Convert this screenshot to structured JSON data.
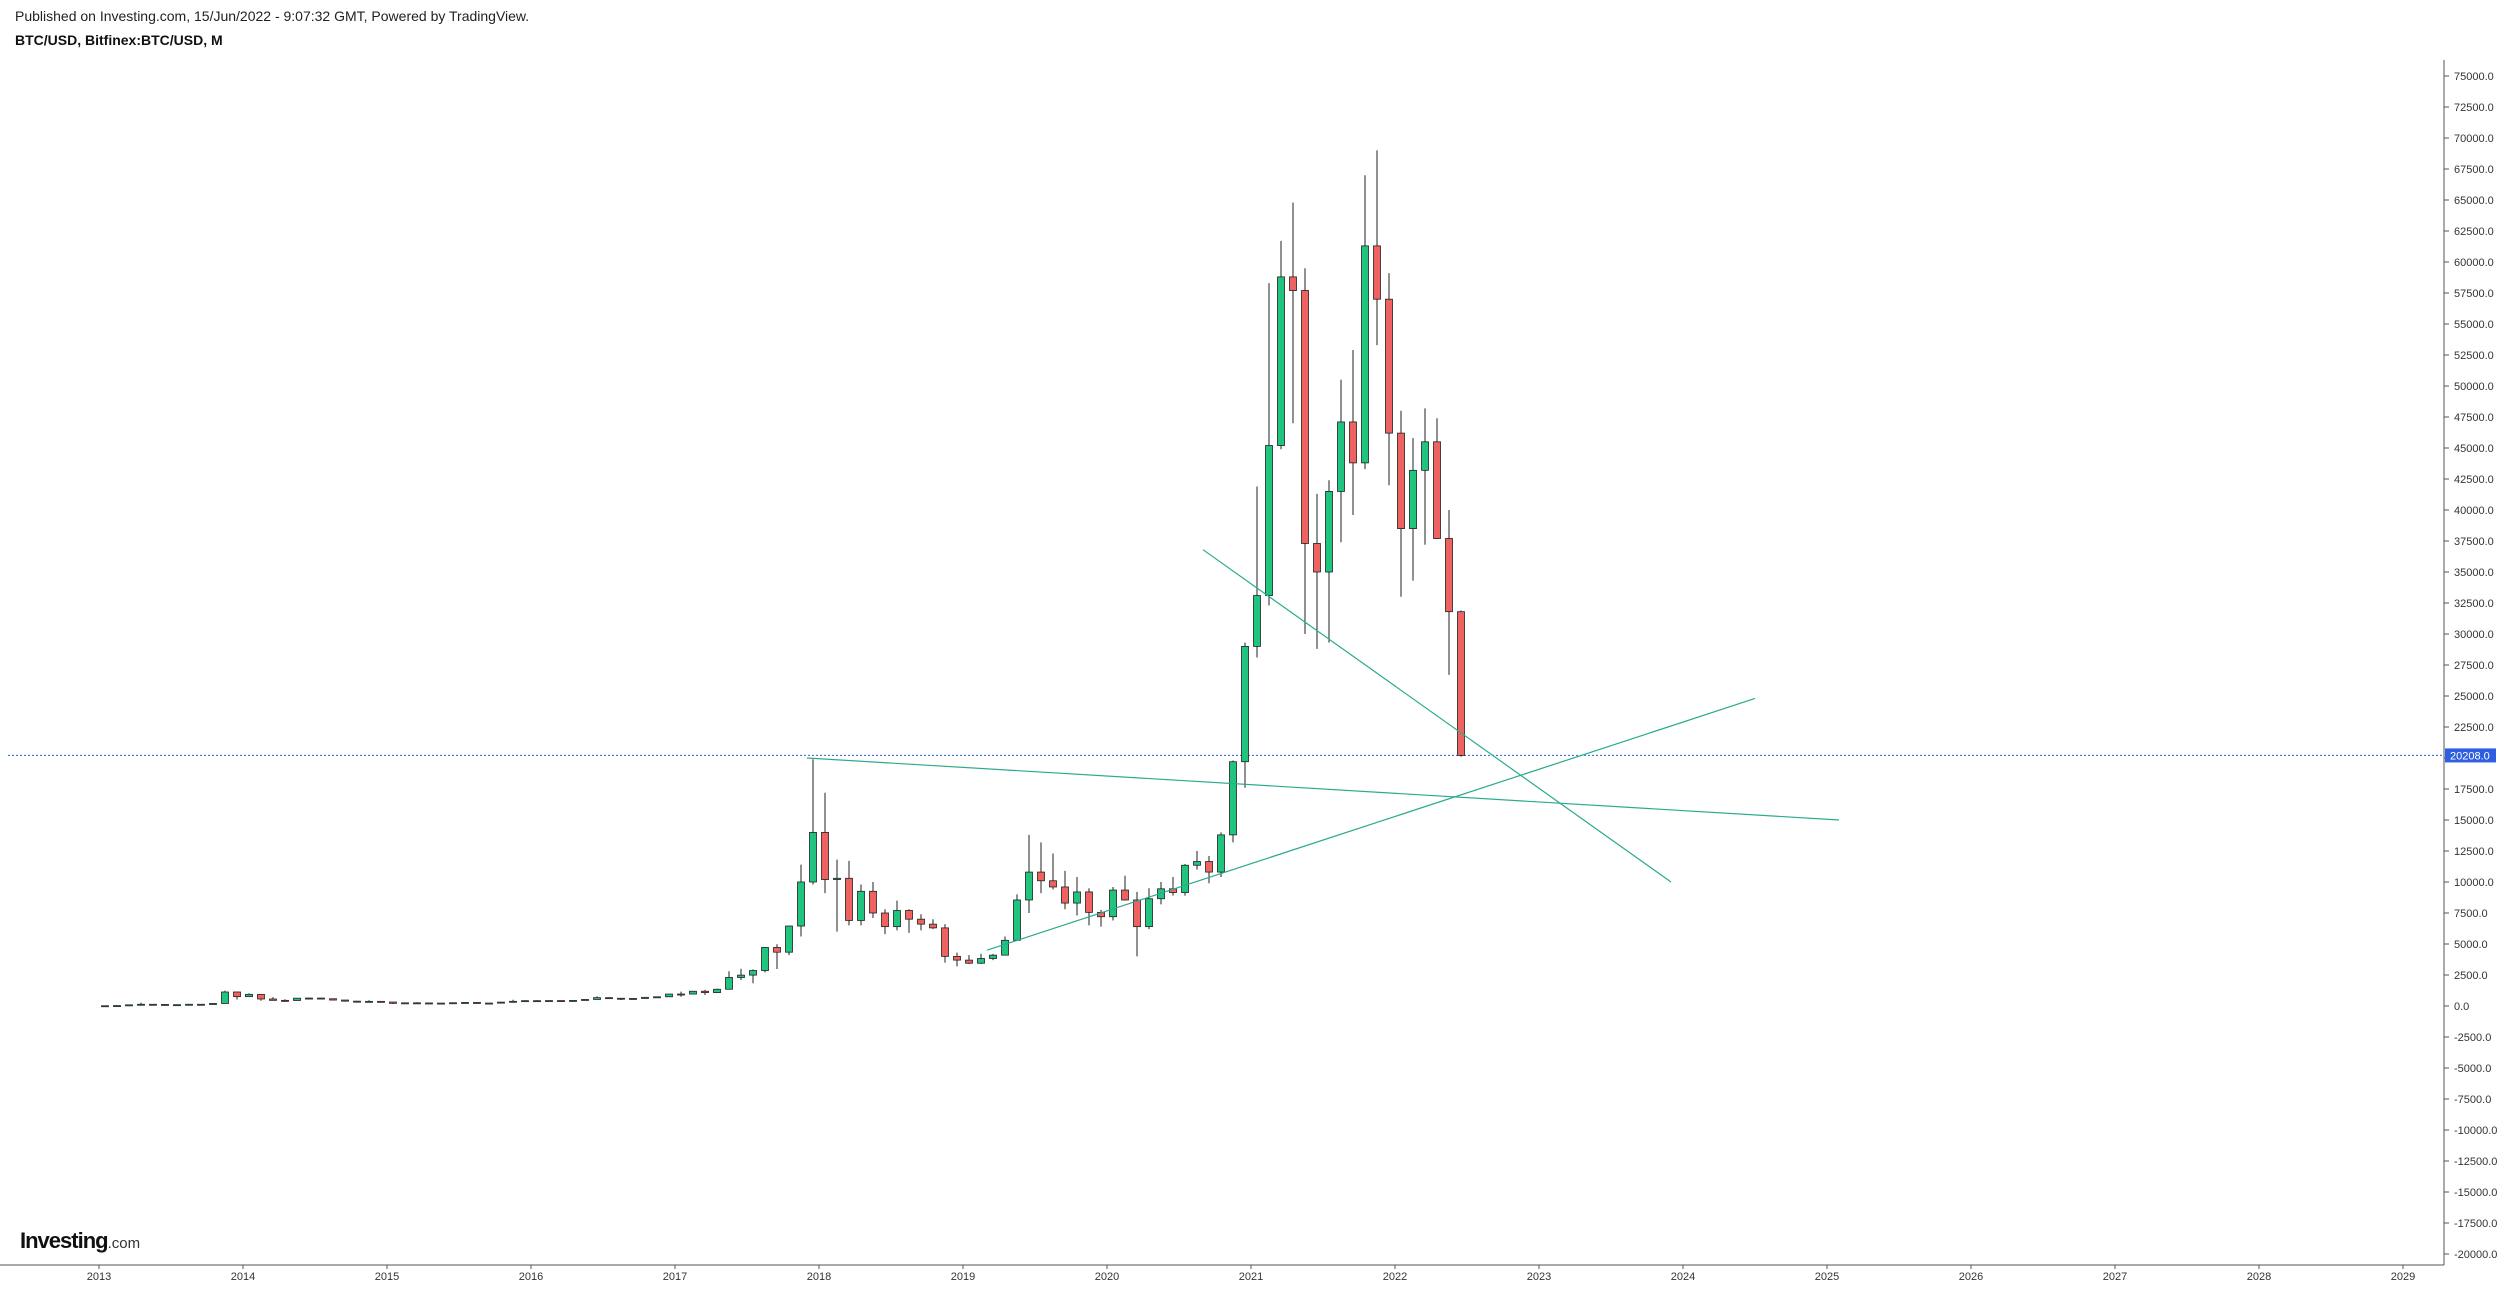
{
  "header": {
    "published": "Published on Investing.com, 15/Jun/2022 - 9:07:32 GMT, Powered by TradingView.",
    "symbol": "BTC/USD, Bitfinex:BTC/USD, M"
  },
  "logo": {
    "text": "Investing",
    "suffix": ".com"
  },
  "colors": {
    "up": "#1fc57f",
    "down": "#f0625f",
    "wick": "#222222",
    "trendline": "#2aab8e",
    "price_line": "#2f5fe0",
    "price_tag": "#2f5fe0",
    "axis": "#555555"
  },
  "chart_data": {
    "type": "candlestick",
    "title": "BTC/USD, Bitfinex:BTC/USD, M",
    "interval": "monthly",
    "ylim": [
      -21000,
      77000
    ],
    "y_ticks": [
      75000,
      72500,
      70000,
      67500,
      65000,
      62500,
      60000,
      57500,
      55000,
      52500,
      50000,
      47500,
      45000,
      42500,
      40000,
      37500,
      35000,
      32500,
      30000,
      27500,
      25000,
      22500,
      20000,
      17500,
      15000,
      12500,
      10000,
      7500,
      5000,
      2500,
      0,
      -2500,
      -5000,
      -7500,
      -10000,
      -12500,
      -15000,
      -17500,
      -20000
    ],
    "x_labels": [
      "2013",
      "2014",
      "2015",
      "2016",
      "2017",
      "2018",
      "2019",
      "2020",
      "2021",
      "2022",
      "2023",
      "2024",
      "2025",
      "2026",
      "2027",
      "2028",
      "2029"
    ],
    "last_price": 20208.0,
    "last_price_label": "20208.0",
    "candles": [
      {
        "date": "2013-01",
        "open": 13,
        "high": 21,
        "low": 13,
        "close": 20
      },
      {
        "date": "2013-02",
        "open": 20,
        "high": 34,
        "low": 19,
        "close": 33
      },
      {
        "date": "2013-03",
        "open": 33,
        "high": 95,
        "low": 33,
        "close": 93
      },
      {
        "date": "2013-04",
        "open": 93,
        "high": 266,
        "low": 50,
        "close": 139
      },
      {
        "date": "2013-05",
        "open": 139,
        "high": 140,
        "low": 80,
        "close": 129
      },
      {
        "date": "2013-06",
        "open": 129,
        "high": 130,
        "low": 87,
        "close": 97
      },
      {
        "date": "2013-07",
        "open": 97,
        "high": 110,
        "low": 65,
        "close": 106
      },
      {
        "date": "2013-08",
        "open": 106,
        "high": 140,
        "low": 100,
        "close": 139
      },
      {
        "date": "2013-09",
        "open": 139,
        "high": 145,
        "low": 110,
        "close": 135
      },
      {
        "date": "2013-10",
        "open": 135,
        "high": 215,
        "low": 106,
        "close": 205
      },
      {
        "date": "2013-11",
        "open": 205,
        "high": 1240,
        "low": 200,
        "close": 1130
      },
      {
        "date": "2013-12",
        "open": 1130,
        "high": 1160,
        "low": 520,
        "close": 755
      },
      {
        "date": "2014-01",
        "open": 755,
        "high": 1020,
        "low": 750,
        "close": 940
      },
      {
        "date": "2014-02",
        "open": 940,
        "high": 950,
        "low": 420,
        "close": 565
      },
      {
        "date": "2014-03",
        "open": 565,
        "high": 720,
        "low": 440,
        "close": 455
      },
      {
        "date": "2014-04",
        "open": 455,
        "high": 540,
        "low": 340,
        "close": 445
      },
      {
        "date": "2014-05",
        "open": 445,
        "high": 640,
        "low": 420,
        "close": 630
      },
      {
        "date": "2014-06",
        "open": 630,
        "high": 680,
        "low": 540,
        "close": 640
      },
      {
        "date": "2014-07",
        "open": 640,
        "high": 650,
        "low": 565,
        "close": 585
      },
      {
        "date": "2014-08",
        "open": 585,
        "high": 600,
        "low": 450,
        "close": 480
      },
      {
        "date": "2014-09",
        "open": 480,
        "high": 490,
        "low": 350,
        "close": 390
      },
      {
        "date": "2014-10",
        "open": 390,
        "high": 415,
        "low": 275,
        "close": 340
      },
      {
        "date": "2014-11",
        "open": 340,
        "high": 460,
        "low": 315,
        "close": 375
      },
      {
        "date": "2014-12",
        "open": 375,
        "high": 385,
        "low": 300,
        "close": 320
      },
      {
        "date": "2015-01",
        "open": 320,
        "high": 320,
        "low": 165,
        "close": 215
      },
      {
        "date": "2015-02",
        "open": 215,
        "high": 265,
        "low": 210,
        "close": 255
      },
      {
        "date": "2015-03",
        "open": 255,
        "high": 300,
        "low": 240,
        "close": 245
      },
      {
        "date": "2015-04",
        "open": 245,
        "high": 260,
        "low": 215,
        "close": 235
      },
      {
        "date": "2015-05",
        "open": 235,
        "high": 245,
        "low": 225,
        "close": 230
      },
      {
        "date": "2015-06",
        "open": 230,
        "high": 265,
        "low": 220,
        "close": 262
      },
      {
        "date": "2015-07",
        "open": 262,
        "high": 315,
        "low": 255,
        "close": 284
      },
      {
        "date": "2015-08",
        "open": 284,
        "high": 285,
        "low": 200,
        "close": 230
      },
      {
        "date": "2015-09",
        "open": 230,
        "high": 245,
        "low": 225,
        "close": 236
      },
      {
        "date": "2015-10",
        "open": 236,
        "high": 330,
        "low": 236,
        "close": 312
      },
      {
        "date": "2015-11",
        "open": 312,
        "high": 500,
        "low": 305,
        "close": 378
      },
      {
        "date": "2015-12",
        "open": 378,
        "high": 465,
        "low": 350,
        "close": 430
      },
      {
        "date": "2016-01",
        "open": 430,
        "high": 460,
        "low": 355,
        "close": 368
      },
      {
        "date": "2016-02",
        "open": 368,
        "high": 440,
        "low": 365,
        "close": 437
      },
      {
        "date": "2016-03",
        "open": 437,
        "high": 438,
        "low": 400,
        "close": 416
      },
      {
        "date": "2016-04",
        "open": 416,
        "high": 465,
        "low": 415,
        "close": 448
      },
      {
        "date": "2016-05",
        "open": 448,
        "high": 550,
        "low": 440,
        "close": 530
      },
      {
        "date": "2016-06",
        "open": 530,
        "high": 780,
        "low": 530,
        "close": 672
      },
      {
        "date": "2016-07",
        "open": 672,
        "high": 700,
        "low": 600,
        "close": 624
      },
      {
        "date": "2016-08",
        "open": 624,
        "high": 630,
        "low": 480,
        "close": 574
      },
      {
        "date": "2016-09",
        "open": 574,
        "high": 620,
        "low": 570,
        "close": 608
      },
      {
        "date": "2016-10",
        "open": 608,
        "high": 720,
        "low": 600,
        "close": 700
      },
      {
        "date": "2016-11",
        "open": 700,
        "high": 750,
        "low": 680,
        "close": 742
      },
      {
        "date": "2016-12",
        "open": 742,
        "high": 980,
        "low": 740,
        "close": 963
      },
      {
        "date": "2017-01",
        "open": 963,
        "high": 1160,
        "low": 750,
        "close": 965
      },
      {
        "date": "2017-02",
        "open": 965,
        "high": 1200,
        "low": 930,
        "close": 1190
      },
      {
        "date": "2017-03",
        "open": 1190,
        "high": 1300,
        "low": 890,
        "close": 1080
      },
      {
        "date": "2017-04",
        "open": 1080,
        "high": 1400,
        "low": 1060,
        "close": 1350
      },
      {
        "date": "2017-05",
        "open": 1350,
        "high": 2800,
        "low": 1350,
        "close": 2300
      },
      {
        "date": "2017-06",
        "open": 2300,
        "high": 3000,
        "low": 2100,
        "close": 2490
      },
      {
        "date": "2017-07",
        "open": 2490,
        "high": 2950,
        "low": 1830,
        "close": 2860
      },
      {
        "date": "2017-08",
        "open": 2860,
        "high": 4700,
        "low": 2700,
        "close": 4720
      },
      {
        "date": "2017-09",
        "open": 4720,
        "high": 4980,
        "low": 2980,
        "close": 4340
      },
      {
        "date": "2017-10",
        "open": 4340,
        "high": 6470,
        "low": 4100,
        "close": 6450
      },
      {
        "date": "2017-11",
        "open": 6450,
        "high": 11400,
        "low": 5600,
        "close": 10000
      },
      {
        "date": "2017-12",
        "open": 10000,
        "high": 19900,
        "low": 9800,
        "close": 14000
      },
      {
        "date": "2018-01",
        "open": 14000,
        "high": 17200,
        "low": 9100,
        "close": 10200
      },
      {
        "date": "2018-02",
        "open": 10200,
        "high": 11800,
        "low": 6000,
        "close": 10300
      },
      {
        "date": "2018-03",
        "open": 10300,
        "high": 11700,
        "low": 6500,
        "close": 6900
      },
      {
        "date": "2018-04",
        "open": 6900,
        "high": 9800,
        "low": 6500,
        "close": 9250
      },
      {
        "date": "2018-05",
        "open": 9250,
        "high": 10000,
        "low": 7100,
        "close": 7500
      },
      {
        "date": "2018-06",
        "open": 7500,
        "high": 7800,
        "low": 5800,
        "close": 6400
      },
      {
        "date": "2018-07",
        "open": 6400,
        "high": 8500,
        "low": 6100,
        "close": 7700
      },
      {
        "date": "2018-08",
        "open": 7700,
        "high": 7800,
        "low": 5900,
        "close": 7000
      },
      {
        "date": "2018-09",
        "open": 7000,
        "high": 7400,
        "low": 6100,
        "close": 6600
      },
      {
        "date": "2018-10",
        "open": 6600,
        "high": 7000,
        "low": 6200,
        "close": 6300
      },
      {
        "date": "2018-11",
        "open": 6300,
        "high": 6600,
        "low": 3500,
        "close": 4000
      },
      {
        "date": "2018-12",
        "open": 4000,
        "high": 4300,
        "low": 3200,
        "close": 3700
      },
      {
        "date": "2019-01",
        "open": 3700,
        "high": 4100,
        "low": 3400,
        "close": 3450
      },
      {
        "date": "2019-02",
        "open": 3450,
        "high": 4200,
        "low": 3400,
        "close": 3830
      },
      {
        "date": "2019-03",
        "open": 3830,
        "high": 4200,
        "low": 3700,
        "close": 4100
      },
      {
        "date": "2019-04",
        "open": 4100,
        "high": 5600,
        "low": 4100,
        "close": 5300
      },
      {
        "date": "2019-05",
        "open": 5300,
        "high": 9000,
        "low": 5300,
        "close": 8550
      },
      {
        "date": "2019-06",
        "open": 8550,
        "high": 13800,
        "low": 7500,
        "close": 10800
      },
      {
        "date": "2019-07",
        "open": 10800,
        "high": 13200,
        "low": 9100,
        "close": 10100
      },
      {
        "date": "2019-08",
        "open": 10100,
        "high": 12300,
        "low": 9400,
        "close": 9600
      },
      {
        "date": "2019-09",
        "open": 9600,
        "high": 10900,
        "low": 7800,
        "close": 8300
      },
      {
        "date": "2019-10",
        "open": 8300,
        "high": 10400,
        "low": 7300,
        "close": 9200
      },
      {
        "date": "2019-11",
        "open": 9200,
        "high": 9500,
        "low": 6500,
        "close": 7550
      },
      {
        "date": "2019-12",
        "open": 7550,
        "high": 7750,
        "low": 6400,
        "close": 7200
      },
      {
        "date": "2020-01",
        "open": 7200,
        "high": 9600,
        "low": 6900,
        "close": 9350
      },
      {
        "date": "2020-02",
        "open": 9350,
        "high": 10500,
        "low": 8500,
        "close": 8550
      },
      {
        "date": "2020-03",
        "open": 8550,
        "high": 9200,
        "low": 4000,
        "close": 6400
      },
      {
        "date": "2020-04",
        "open": 6400,
        "high": 9500,
        "low": 6200,
        "close": 8650
      },
      {
        "date": "2020-05",
        "open": 8650,
        "high": 10000,
        "low": 8200,
        "close": 9450
      },
      {
        "date": "2020-06",
        "open": 9450,
        "high": 10400,
        "low": 8900,
        "close": 9150
      },
      {
        "date": "2020-07",
        "open": 9150,
        "high": 11450,
        "low": 8900,
        "close": 11350
      },
      {
        "date": "2020-08",
        "open": 11350,
        "high": 12500,
        "low": 11000,
        "close": 11650
      },
      {
        "date": "2020-09",
        "open": 11650,
        "high": 12100,
        "low": 9900,
        "close": 10800
      },
      {
        "date": "2020-10",
        "open": 10800,
        "high": 14000,
        "low": 10400,
        "close": 13800
      },
      {
        "date": "2020-11",
        "open": 13800,
        "high": 19800,
        "low": 13200,
        "close": 19700
      },
      {
        "date": "2020-12",
        "open": 19700,
        "high": 29300,
        "low": 17600,
        "close": 29000
      },
      {
        "date": "2021-01",
        "open": 29000,
        "high": 41900,
        "low": 28100,
        "close": 33100
      },
      {
        "date": "2021-02",
        "open": 33100,
        "high": 58300,
        "low": 32300,
        "close": 45200
      },
      {
        "date": "2021-03",
        "open": 45200,
        "high": 61700,
        "low": 44900,
        "close": 58800
      },
      {
        "date": "2021-04",
        "open": 58800,
        "high": 64800,
        "low": 47000,
        "close": 57700
      },
      {
        "date": "2021-05",
        "open": 57700,
        "high": 59500,
        "low": 30000,
        "close": 37300
      },
      {
        "date": "2021-06",
        "open": 37300,
        "high": 41300,
        "low": 28800,
        "close": 35000
      },
      {
        "date": "2021-07",
        "open": 35000,
        "high": 42400,
        "low": 29300,
        "close": 41500
      },
      {
        "date": "2021-08",
        "open": 41500,
        "high": 50500,
        "low": 37400,
        "close": 47100
      },
      {
        "date": "2021-09",
        "open": 47100,
        "high": 52900,
        "low": 39600,
        "close": 43800
      },
      {
        "date": "2021-10",
        "open": 43800,
        "high": 67000,
        "low": 43300,
        "close": 61300
      },
      {
        "date": "2021-11",
        "open": 61300,
        "high": 69000,
        "low": 53300,
        "close": 57000
      },
      {
        "date": "2021-12",
        "open": 57000,
        "high": 59100,
        "low": 42000,
        "close": 46200
      },
      {
        "date": "2022-01",
        "open": 46200,
        "high": 48000,
        "low": 33000,
        "close": 38500
      },
      {
        "date": "2022-02",
        "open": 38500,
        "high": 45800,
        "low": 34300,
        "close": 43200
      },
      {
        "date": "2022-03",
        "open": 43200,
        "high": 48200,
        "low": 37200,
        "close": 45500
      },
      {
        "date": "2022-04",
        "open": 45500,
        "high": 47400,
        "low": 37700,
        "close": 37700
      },
      {
        "date": "2022-05",
        "open": 37700,
        "high": 40000,
        "low": 26700,
        "close": 31800
      },
      {
        "date": "2022-06",
        "open": 31800,
        "high": 31900,
        "low": 20100,
        "close": 20208
      }
    ],
    "trendlines": [
      {
        "from": {
          "date": "2017-12",
          "price": 20000
        },
        "to": {
          "date": "2025-02",
          "price": 15000
        }
      },
      {
        "from": {
          "date": "2019-03",
          "price": 4500
        },
        "to": {
          "date": "2024-07",
          "price": 24800
        }
      },
      {
        "from": {
          "date": "2020-09",
          "price": 36800
        },
        "to": {
          "date": "2023-12",
          "price": 10000
        }
      }
    ]
  }
}
